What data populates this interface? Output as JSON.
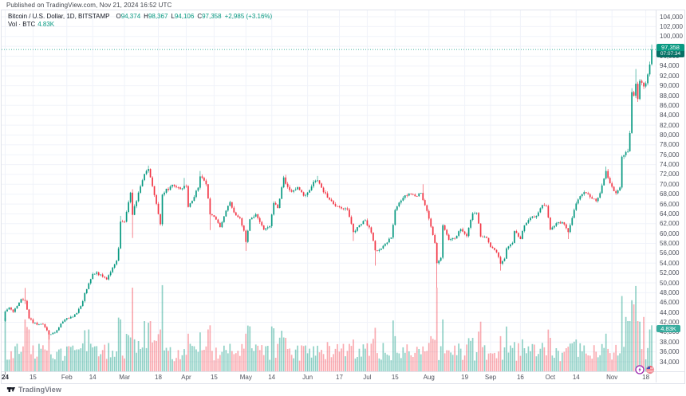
{
  "page": {
    "published_line": "Published on TradingView.com, Nov 21, 2024 16:52 UTC",
    "attribution_label": "TradingView"
  },
  "legend": {
    "title": "Bitcoin / U.S. Dollar, 1D, BITSTAMP",
    "ohlc": [
      {
        "label": "O",
        "value": "94,374"
      },
      {
        "label": "H",
        "value": "98,367"
      },
      {
        "label": "L",
        "value": "94,106"
      },
      {
        "label": "C",
        "value": "97,358"
      }
    ],
    "change": "+2,985 (+3.16%)",
    "vol_label": "Vol · BTC",
    "vol_value": "4.83K"
  },
  "badges": {
    "price": {
      "value": "97,358",
      "countdown": "07:07:34"
    },
    "volume": {
      "value": "4.83K"
    }
  },
  "axes": {
    "y_values": [
      34000,
      36000,
      38000,
      40000,
      42000,
      44000,
      46000,
      48000,
      50000,
      52000,
      54000,
      56000,
      58000,
      60000,
      62000,
      64000,
      66000,
      68000,
      70000,
      72000,
      74000,
      76000,
      78000,
      80000,
      82000,
      84000,
      86000,
      88000,
      90000,
      92000,
      94000,
      96000,
      98000,
      100000,
      102000,
      104000
    ],
    "y_labels": [
      "34,000",
      "36,000",
      "38,000",
      "40,000",
      "42,000",
      "44,000",
      "46,000",
      "48,000",
      "50,000",
      "52,000",
      "54,000",
      "56,000",
      "58,000",
      "60,000",
      "62,000",
      "64,000",
      "66,000",
      "68,000",
      "70,000",
      "72,000",
      "74,000",
      "76,000",
      "78,000",
      "80,000",
      "82,000",
      "84,000",
      "86,000",
      "88,000",
      "90,000",
      "92,000",
      "94,000",
      "96,000",
      "98,000",
      "100,000",
      "102,000",
      "104,000"
    ],
    "x_ticks": [
      {
        "day": 0,
        "label": "24",
        "year": true
      },
      {
        "day": 14,
        "label": "15"
      },
      {
        "day": 31,
        "label": "Feb"
      },
      {
        "day": 44,
        "label": "14"
      },
      {
        "day": 60,
        "label": "Mar"
      },
      {
        "day": 77,
        "label": "18"
      },
      {
        "day": 91,
        "label": "Apr"
      },
      {
        "day": 105,
        "label": "15"
      },
      {
        "day": 121,
        "label": "May"
      },
      {
        "day": 134,
        "label": "14"
      },
      {
        "day": 152,
        "label": "Jun"
      },
      {
        "day": 168,
        "label": "17"
      },
      {
        "day": 182,
        "label": "Jul"
      },
      {
        "day": 196,
        "label": "15"
      },
      {
        "day": 213,
        "label": "Aug"
      },
      {
        "day": 231,
        "label": "19"
      },
      {
        "day": 244,
        "label": "Sep"
      },
      {
        "day": 259,
        "label": "16"
      },
      {
        "day": 274,
        "label": "Oct"
      },
      {
        "day": 287,
        "label": "14"
      },
      {
        "day": 305,
        "label": "Nov"
      },
      {
        "day": 322,
        "label": "18"
      }
    ]
  },
  "chart_data": {
    "type": "candlestick",
    "title": "Bitcoin / U.S. Dollar, 1D, BITSTAMP",
    "timeframe": "1D",
    "x_range": "Jan 1 2024 – Nov 21 2024 (326 daily bars)",
    "price_axis_range": [
      34000,
      104000
    ],
    "grid": true,
    "current_price_line": 97358,
    "first_open": 42280,
    "days": 326,
    "last_candle": {
      "open": 94374,
      "high": 98367,
      "low": 94106,
      "close": 97358
    },
    "close_anchors": [
      [
        0,
        44200
      ],
      [
        2,
        45000
      ],
      [
        4,
        44100
      ],
      [
        8,
        46700
      ],
      [
        10,
        46350
      ],
      [
        12,
        42800
      ],
      [
        16,
        41500
      ],
      [
        19,
        41600
      ],
      [
        22,
        39550
      ],
      [
        25,
        39900
      ],
      [
        30,
        42580
      ],
      [
        34,
        43100
      ],
      [
        38,
        45300
      ],
      [
        42,
        49900
      ],
      [
        44,
        51800
      ],
      [
        48,
        51700
      ],
      [
        51,
        50700
      ],
      [
        56,
        54500
      ],
      [
        57,
        57000
      ],
      [
        58,
        62440
      ],
      [
        60,
        62400
      ],
      [
        63,
        68300
      ],
      [
        64,
        63800
      ],
      [
        67,
        68300
      ],
      [
        70,
        72100
      ],
      [
        72,
        73100
      ],
      [
        73,
        71400
      ],
      [
        75,
        67800
      ],
      [
        78,
        61900
      ],
      [
        79,
        67900
      ],
      [
        84,
        69900
      ],
      [
        86,
        69400
      ],
      [
        88,
        69000
      ],
      [
        91,
        69650
      ],
      [
        92,
        65400
      ],
      [
        97,
        69300
      ],
      [
        98,
        71600
      ],
      [
        101,
        70000
      ],
      [
        102,
        67100
      ],
      [
        103,
        63900
      ],
      [
        105,
        63400
      ],
      [
        108,
        61300
      ],
      [
        110,
        63500
      ],
      [
        113,
        66400
      ],
      [
        115,
        64300
      ],
      [
        118,
        63100
      ],
      [
        120,
        60600
      ],
      [
        121,
        58300
      ],
      [
        123,
        62900
      ],
      [
        126,
        63900
      ],
      [
        130,
        60800
      ],
      [
        133,
        61500
      ],
      [
        135,
        66200
      ],
      [
        137,
        65200
      ],
      [
        140,
        71400
      ],
      [
        141,
        70100
      ],
      [
        144,
        68500
      ],
      [
        147,
        69400
      ],
      [
        150,
        67700
      ],
      [
        153,
        68800
      ],
      [
        155,
        70500
      ],
      [
        157,
        70800
      ],
      [
        159,
        69300
      ],
      [
        162,
        67300
      ],
      [
        165,
        66000
      ],
      [
        169,
        65100
      ],
      [
        172,
        64900
      ],
      [
        175,
        60300
      ],
      [
        178,
        61700
      ],
      [
        181,
        62700
      ],
      [
        184,
        60200
      ],
      [
        186,
        56600
      ],
      [
        188,
        56700
      ],
      [
        191,
        57900
      ],
      [
        194,
        59200
      ],
      [
        196,
        64800
      ],
      [
        199,
        66700
      ],
      [
        203,
        68150
      ],
      [
        206,
        67600
      ],
      [
        209,
        68250
      ],
      [
        210,
        66800
      ],
      [
        212,
        64600
      ],
      [
        214,
        61400
      ],
      [
        216,
        58100
      ],
      [
        217,
        54000
      ],
      [
        219,
        55100
      ],
      [
        220,
        61700
      ],
      [
        223,
        58700
      ],
      [
        226,
        59000
      ],
      [
        229,
        60900
      ],
      [
        232,
        59500
      ],
      [
        235,
        64100
      ],
      [
        237,
        64200
      ],
      [
        239,
        59400
      ],
      [
        242,
        59100
      ],
      [
        244,
        57300
      ],
      [
        247,
        56200
      ],
      [
        249,
        53900
      ],
      [
        251,
        54900
      ],
      [
        252,
        57000
      ],
      [
        255,
        58100
      ],
      [
        256,
        60500
      ],
      [
        259,
        58900
      ],
      [
        261,
        61700
      ],
      [
        264,
        63200
      ],
      [
        266,
        63300
      ],
      [
        268,
        64300
      ],
      [
        270,
        65800
      ],
      [
        272,
        65600
      ],
      [
        274,
        60800
      ],
      [
        277,
        62100
      ],
      [
        280,
        62300
      ],
      [
        283,
        60300
      ],
      [
        285,
        63200
      ],
      [
        287,
        66100
      ],
      [
        289,
        67600
      ],
      [
        291,
        68400
      ],
      [
        294,
        67400
      ],
      [
        297,
        66600
      ],
      [
        299,
        68200
      ],
      [
        302,
        72700
      ],
      [
        304,
        70200
      ],
      [
        305,
        69500
      ],
      [
        307,
        68200
      ],
      [
        308,
        68750
      ],
      [
        309,
        69350
      ],
      [
        310,
        75600
      ],
      [
        311,
        75900
      ],
      [
        312,
        76550
      ],
      [
        313,
        76700
      ],
      [
        314,
        80400
      ],
      [
        315,
        88700
      ],
      [
        316,
        87950
      ],
      [
        317,
        90400
      ],
      [
        318,
        87300
      ],
      [
        319,
        91000
      ],
      [
        320,
        90600
      ],
      [
        321,
        89850
      ],
      [
        322,
        90500
      ],
      [
        323,
        92300
      ],
      [
        324,
        94300
      ],
      [
        325,
        97358
      ]
    ],
    "wick_lows": [
      [
        10,
        45700
      ],
      [
        22,
        38505
      ],
      [
        64,
        59100
      ],
      [
        103,
        60700
      ],
      [
        121,
        56500
      ],
      [
        175,
        58500
      ],
      [
        186,
        53500
      ],
      [
        217,
        49000
      ],
      [
        249,
        52500
      ],
      [
        283,
        58900
      ],
      [
        318,
        86700
      ]
    ],
    "wick_highs": [
      [
        10,
        48970
      ],
      [
        58,
        63600
      ],
      [
        64,
        69000
      ],
      [
        72,
        73800
      ],
      [
        90,
        71300
      ],
      [
        98,
        72700
      ],
      [
        141,
        71950
      ],
      [
        157,
        71700
      ],
      [
        210,
        70000
      ],
      [
        302,
        73600
      ],
      [
        313,
        77200
      ],
      [
        315,
        89500
      ],
      [
        317,
        93400
      ],
      [
        324,
        94900
      ]
    ],
    "volume_spikes": [
      [
        10,
        0.62
      ],
      [
        12,
        0.5
      ],
      [
        22,
        0.45
      ],
      [
        42,
        0.5
      ],
      [
        58,
        0.62
      ],
      [
        64,
        1.0
      ],
      [
        70,
        0.6
      ],
      [
        72,
        0.58
      ],
      [
        73,
        0.6
      ],
      [
        78,
        0.5
      ],
      [
        92,
        0.45
      ],
      [
        102,
        0.5
      ],
      [
        103,
        0.55
      ],
      [
        121,
        0.45
      ],
      [
        141,
        0.4
      ],
      [
        162,
        0.35
      ],
      [
        175,
        0.38
      ],
      [
        186,
        0.52
      ],
      [
        196,
        0.42
      ],
      [
        214,
        0.42
      ],
      [
        217,
        1.0
      ],
      [
        220,
        0.62
      ],
      [
        235,
        0.4
      ],
      [
        249,
        0.42
      ],
      [
        256,
        0.35
      ],
      [
        274,
        0.4
      ],
      [
        287,
        0.38
      ],
      [
        302,
        0.45
      ],
      [
        310,
        0.9
      ],
      [
        312,
        0.65
      ],
      [
        313,
        0.6
      ],
      [
        314,
        0.6
      ],
      [
        315,
        0.85
      ],
      [
        316,
        0.8
      ],
      [
        317,
        1.02
      ],
      [
        318,
        0.6
      ],
      [
        321,
        0.65
      ],
      [
        324,
        0.5
      ],
      [
        325,
        0.55
      ]
    ],
    "event_markers": [
      {
        "day": 319,
        "type": "purple-bolt"
      },
      {
        "day": 324,
        "type": "us-flag"
      }
    ]
  },
  "colors": {
    "up": "#089981",
    "down": "#f23645",
    "vol_up": "rgba(8,153,129,0.45)",
    "vol_down": "rgba(242,54,69,0.42)",
    "grid": "#f0f3fa",
    "axis_text": "#50535e",
    "separator": "#e0e3eb",
    "price_line": "#089981"
  }
}
